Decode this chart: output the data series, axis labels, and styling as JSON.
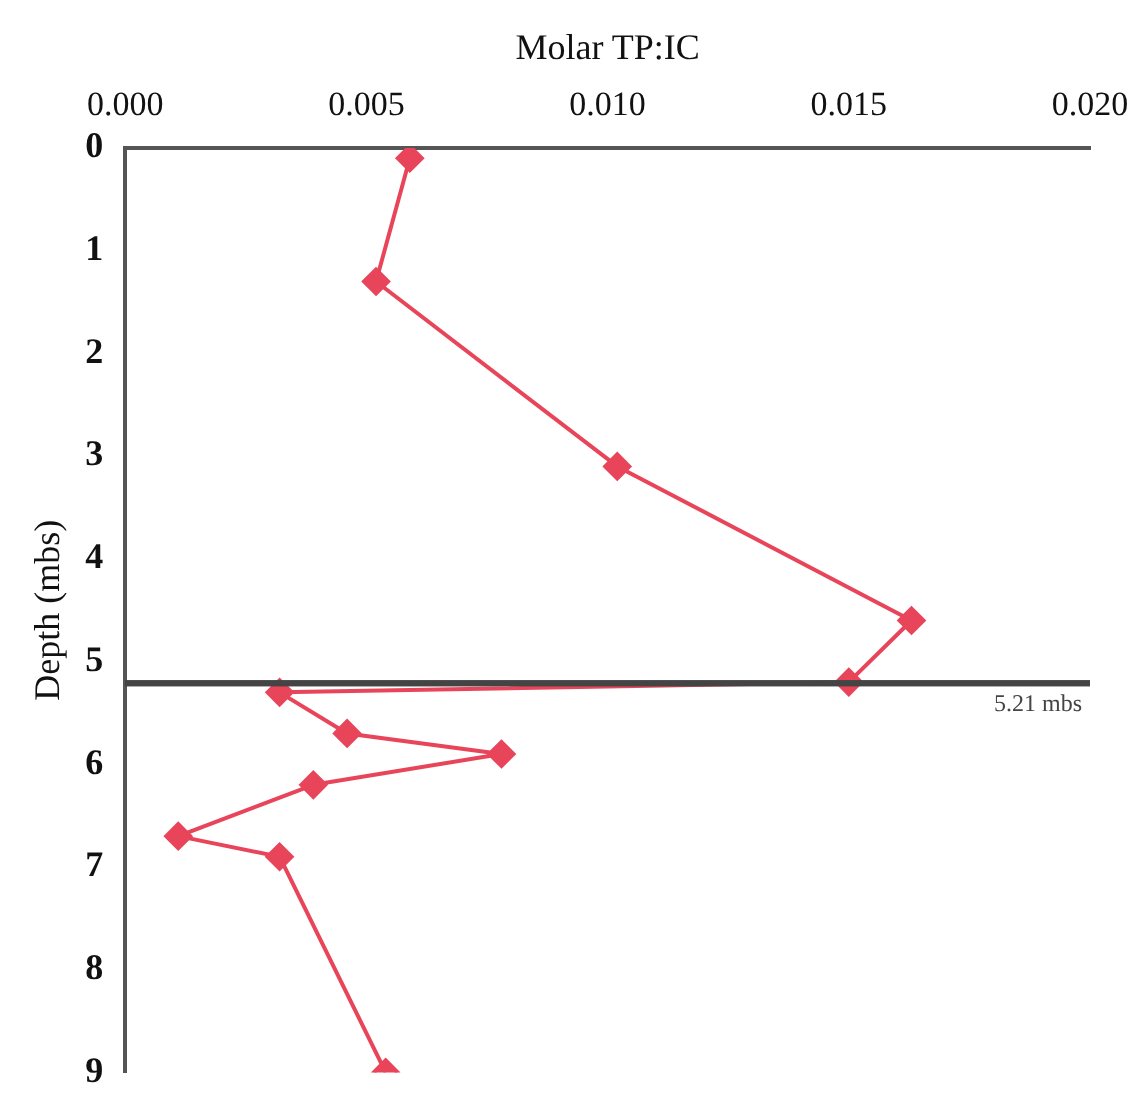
{
  "chart_data": {
    "type": "line",
    "xlabel": "Molar TP:IC",
    "ylabel": "Depth (mbs)",
    "x": [
      0.0059,
      0.0052,
      0.0102,
      0.0163,
      0.015,
      0.0032,
      0.0046,
      0.0078,
      0.0039,
      0.0011,
      0.0032,
      0.0054
    ],
    "series": [
      {
        "color": "#e8455a",
        "values": [
          0.1,
          1.3,
          3.1,
          4.6,
          5.2,
          5.3,
          5.7,
          5.9,
          6.2,
          6.7,
          6.9,
          9.0
        ]
      }
    ],
    "xlim": [
      0,
      0.02
    ],
    "xticks": [
      {
        "value": 0,
        "label": "0.000"
      },
      {
        "value": 0.005,
        "label": "0.005"
      },
      {
        "value": 0.01,
        "label": "0.010"
      },
      {
        "value": 0.015,
        "label": "0.015"
      },
      {
        "value": 0.02,
        "label": "0.020"
      }
    ],
    "ylim": [
      9,
      0
    ],
    "yticks": [
      0,
      1,
      2,
      3,
      4,
      5,
      6,
      7,
      8,
      9
    ],
    "ref_lines": [
      {
        "axis": "y",
        "value": 5.21,
        "label": "5.21 mbs",
        "color": "#444444"
      }
    ],
    "marker": "diamond",
    "line_style": "solid",
    "grid": false,
    "legend": false
  }
}
